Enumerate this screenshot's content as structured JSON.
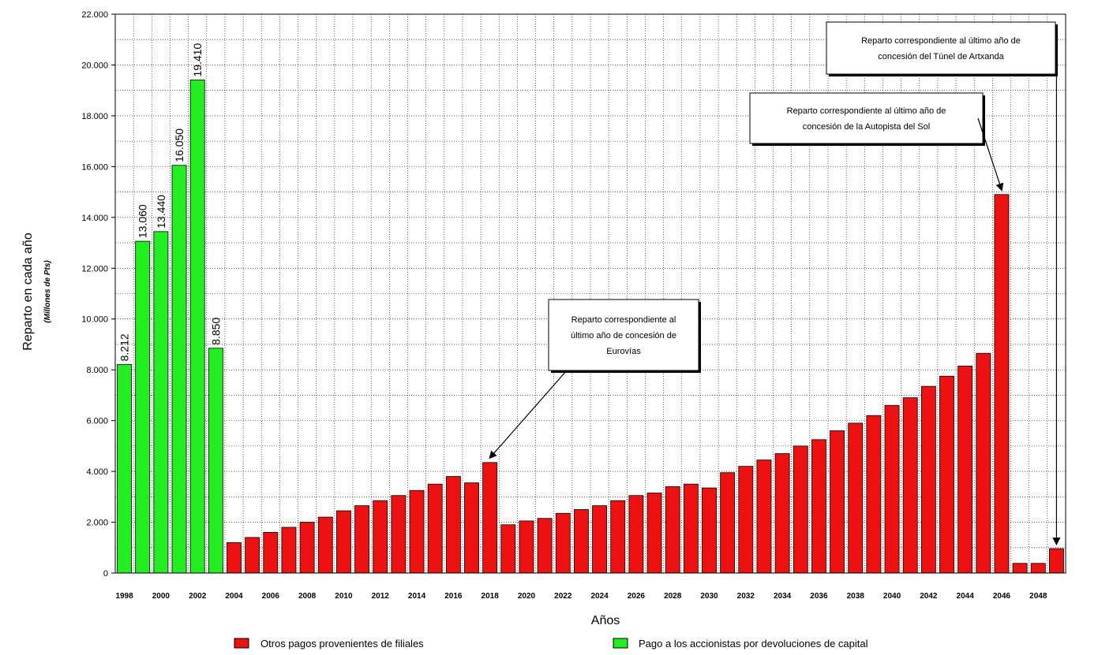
{
  "chart_data": {
    "type": "bar",
    "ylabel": "Reparto en cada año",
    "ylabel_sub": "(Millones de Pts)",
    "xlabel": "Años",
    "ylim": [
      0,
      22000
    ],
    "y_ticks": [
      {
        "value": 0,
        "label": "0"
      },
      {
        "value": 2000,
        "label": "2.000"
      },
      {
        "value": 4000,
        "label": "4.000"
      },
      {
        "value": 6000,
        "label": "6.000"
      },
      {
        "value": 8000,
        "label": "8.000"
      },
      {
        "value": 10000,
        "label": "10.000"
      },
      {
        "value": 12000,
        "label": "12.000"
      },
      {
        "value": 14000,
        "label": "14.000"
      },
      {
        "value": 16000,
        "label": "16.000"
      },
      {
        "value": 18000,
        "label": "18.000"
      },
      {
        "value": 20000,
        "label": "20.000"
      },
      {
        "value": 22000,
        "label": "22.000"
      }
    ],
    "grid": true,
    "legend_position": "bottom",
    "categories": [
      1998,
      1999,
      2000,
      2001,
      2002,
      2003,
      2004,
      2005,
      2006,
      2007,
      2008,
      2009,
      2010,
      2011,
      2012,
      2013,
      2014,
      2015,
      2016,
      2017,
      2018,
      2019,
      2020,
      2021,
      2022,
      2023,
      2024,
      2025,
      2026,
      2027,
      2028,
      2029,
      2030,
      2031,
      2032,
      2033,
      2034,
      2035,
      2036,
      2037,
      2038,
      2039,
      2040,
      2041,
      2042,
      2043,
      2044,
      2045,
      2046,
      2047,
      2048,
      2049
    ],
    "x_tick_labels": [
      "1998",
      "2000",
      "2002",
      "2004",
      "2006",
      "2008",
      "2010",
      "2012",
      "2014",
      "2016",
      "2018",
      "2020",
      "2022",
      "2024",
      "2026",
      "2028",
      "2030",
      "2032",
      "2034",
      "2036",
      "2038",
      "2040",
      "2042",
      "2044",
      "2046",
      "2048"
    ],
    "series": [
      {
        "name": "Otros pagos provenientes de filiales",
        "color": "#ee1111",
        "values": [
          0,
          0,
          0,
          0,
          0,
          250,
          1200,
          1400,
          1600,
          1800,
          2000,
          2200,
          2450,
          2650,
          2850,
          3050,
          3250,
          3500,
          3800,
          3550,
          4350,
          1900,
          2050,
          2150,
          2350,
          2500,
          2650,
          2850,
          3050,
          3150,
          3400,
          3500,
          3350,
          3950,
          4200,
          4450,
          4700,
          5000,
          5250,
          5600,
          5900,
          6200,
          6600,
          6900,
          7350,
          7750,
          8150,
          8650,
          14900,
          380,
          380,
          960
        ]
      },
      {
        "name": "Pago a los accionistas por devoluciones de capital",
        "color": "#22ee22",
        "values": [
          8212,
          13060,
          13440,
          16050,
          19410,
          8850,
          0,
          0,
          0,
          0,
          0,
          0,
          0,
          0,
          0,
          0,
          0,
          0,
          0,
          0,
          0,
          0,
          0,
          0,
          0,
          0,
          0,
          0,
          0,
          0,
          0,
          0,
          0,
          0,
          0,
          0,
          0,
          0,
          0,
          0,
          0,
          0,
          0,
          0,
          0,
          0,
          0,
          0,
          0,
          0,
          0,
          0
        ],
        "data_labels": [
          "8.212",
          "13.060",
          "13.440",
          "16.050",
          "19.410",
          "8.850"
        ]
      }
    ],
    "annotations": [
      {
        "lines": [
          "Reparto correspondiente al",
          "último año de concesión de",
          "Eurovías"
        ],
        "target_year": 2018
      },
      {
        "lines": [
          "Reparto correspondiente al último año de",
          "concesión de la Autopista del Sol"
        ],
        "target_year": 2046
      },
      {
        "lines": [
          "Reparto correspondiente al último año de",
          "concesión del Túnel de Artxanda"
        ],
        "target_year": 2049
      }
    ]
  }
}
